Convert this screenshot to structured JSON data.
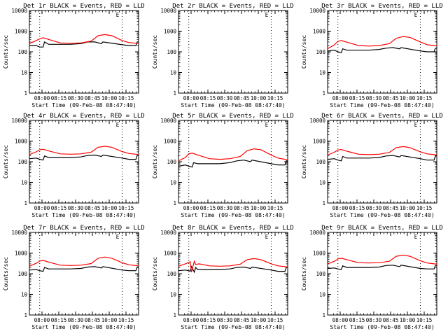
{
  "chart_data": [
    {
      "type": "line",
      "title": "Det 1r BLACK = Events, RED = LLD",
      "xlabel": "Start Time (09-Feb-08 08:47:40)",
      "ylabel": "Counts/sec",
      "yscale": "log",
      "ylim": [
        1,
        10000
      ],
      "xlim": [
        "07:45",
        "10:24"
      ],
      "xticks": [
        "08:00",
        "08:15",
        "08:30",
        "08:45",
        "10:00",
        "10:15"
      ],
      "yticks": [
        "1",
        "10",
        "100",
        "1000",
        "10000"
      ],
      "vlines": [
        "08:00",
        "10:00"
      ],
      "marker": "E",
      "empty": false,
      "series": [
        {
          "name": "Events",
          "color": "#000000",
          "x": [
            "07:45",
            "07:55",
            "08:00",
            "08:05",
            "08:07",
            "08:13",
            "08:30",
            "08:45",
            "09:00",
            "09:10",
            "09:20",
            "09:30",
            "09:32",
            "10:00",
            "10:10",
            "10:20",
            "10:22",
            "10:24"
          ],
          "values": [
            200,
            200,
            170,
            170,
            300,
            230,
            230,
            230,
            250,
            300,
            300,
            250,
            300,
            220,
            200,
            200,
            300,
            300
          ]
        },
        {
          "name": "LLD",
          "color": "#ff0000",
          "x": [
            "07:45",
            "07:55",
            "08:00",
            "08:05",
            "08:15",
            "08:30",
            "08:45",
            "09:00",
            "09:15",
            "09:25",
            "09:35",
            "09:45",
            "10:00",
            "10:10",
            "10:20",
            "10:24"
          ],
          "values": [
            250,
            350,
            420,
            480,
            380,
            270,
            260,
            270,
            330,
            600,
            680,
            600,
            350,
            280,
            260,
            250
          ]
        }
      ]
    },
    {
      "type": "line",
      "title": "Det 2r BLACK = Events, RED = LLD",
      "xlabel": "Start Time (09-Feb-08 08:47:40)",
      "ylabel": "Counts/sec",
      "yscale": "log",
      "ylim": [
        1,
        10000
      ],
      "xlim": [
        "07:45",
        "10:24"
      ],
      "xticks": [
        "08:00",
        "08:15",
        "08:30",
        "08:45",
        "10:00",
        "10:15"
      ],
      "yticks": [
        "1",
        "10",
        "100",
        "1000",
        "10000"
      ],
      "vlines": [
        "08:00",
        "10:00"
      ],
      "marker": "E",
      "empty": true,
      "series": []
    },
    {
      "type": "line",
      "title": "Det 3r BLACK = Events, RED = LLD",
      "xlabel": "Start Time (09-Feb-08 08:47:40)",
      "ylabel": "Counts/sec",
      "yscale": "log",
      "ylim": [
        1,
        10000
      ],
      "xlim": [
        "07:45",
        "10:24"
      ],
      "xticks": [
        "08:00",
        "08:15",
        "08:30",
        "08:45",
        "10:00",
        "10:15"
      ],
      "yticks": [
        "1",
        "10",
        "100",
        "1000",
        "10000"
      ],
      "vlines": [
        "08:00",
        "10:00"
      ],
      "marker": "E",
      "empty": false,
      "series": [
        {
          "name": "Events",
          "color": "#000000",
          "x": [
            "07:45",
            "07:55",
            "08:00",
            "08:05",
            "08:07",
            "08:13",
            "08:30",
            "08:45",
            "09:00",
            "09:10",
            "09:20",
            "09:30",
            "09:32",
            "10:00",
            "10:10",
            "10:20",
            "10:22",
            "10:24"
          ],
          "values": [
            110,
            120,
            100,
            90,
            140,
            120,
            120,
            120,
            130,
            150,
            160,
            140,
            160,
            110,
            100,
            100,
            150,
            150
          ]
        },
        {
          "name": "LLD",
          "color": "#ff0000",
          "x": [
            "07:45",
            "07:55",
            "08:00",
            "08:05",
            "08:15",
            "08:30",
            "08:45",
            "09:00",
            "09:15",
            "09:25",
            "09:35",
            "09:45",
            "10:00",
            "10:10",
            "10:20",
            "10:24"
          ],
          "values": [
            140,
            220,
            320,
            350,
            280,
            200,
            190,
            200,
            250,
            450,
            550,
            500,
            300,
            220,
            200,
            200
          ]
        }
      ]
    },
    {
      "type": "line",
      "title": "Det 4r BLACK = Events, RED = LLD",
      "xlabel": "Start Time (09-Feb-08 08:47:40)",
      "ylabel": "Counts/sec",
      "yscale": "log",
      "ylim": [
        1,
        10000
      ],
      "xlim": [
        "07:45",
        "10:24"
      ],
      "xticks": [
        "08:00",
        "08:15",
        "08:30",
        "08:45",
        "10:00",
        "10:15"
      ],
      "yticks": [
        "1",
        "10",
        "100",
        "1000",
        "10000"
      ],
      "vlines": [
        "08:00",
        "10:00"
      ],
      "marker": "E",
      "empty": false,
      "series": [
        {
          "name": "Events",
          "color": "#000000",
          "x": [
            "07:45",
            "07:55",
            "08:00",
            "08:05",
            "08:07",
            "08:13",
            "08:30",
            "08:45",
            "09:00",
            "09:10",
            "09:20",
            "09:30",
            "09:32",
            "10:00",
            "10:10",
            "10:20",
            "10:22",
            "10:24"
          ],
          "values": [
            140,
            150,
            130,
            120,
            190,
            160,
            160,
            160,
            170,
            200,
            210,
            180,
            210,
            150,
            130,
            130,
            200,
            200
          ]
        },
        {
          "name": "LLD",
          "color": "#ff0000",
          "x": [
            "07:45",
            "07:55",
            "08:00",
            "08:05",
            "08:15",
            "08:30",
            "08:45",
            "09:00",
            "09:15",
            "09:25",
            "09:35",
            "09:45",
            "10:00",
            "10:10",
            "10:20",
            "10:24"
          ],
          "values": [
            220,
            300,
            380,
            400,
            320,
            240,
            230,
            240,
            290,
            500,
            560,
            500,
            310,
            250,
            230,
            220
          ]
        }
      ]
    },
    {
      "type": "line",
      "title": "Det 5r BLACK = Events, RED = LLD",
      "xlabel": "Start Time (09-Feb-08 08:47:40)",
      "ylabel": "Counts/sec",
      "yscale": "log",
      "ylim": [
        1,
        10000
      ],
      "xlim": [
        "07:45",
        "10:24"
      ],
      "xticks": [
        "08:00",
        "08:15",
        "08:30",
        "08:45",
        "10:00",
        "10:15"
      ],
      "yticks": [
        "1",
        "10",
        "100",
        "1000",
        "10000"
      ],
      "vlines": [
        "08:00",
        "10:00"
      ],
      "marker": "E",
      "empty": false,
      "series": [
        {
          "name": "Events",
          "color": "#000000",
          "x": [
            "07:45",
            "07:55",
            "08:00",
            "08:05",
            "08:07",
            "08:13",
            "08:30",
            "08:45",
            "09:00",
            "09:10",
            "09:20",
            "09:30",
            "09:32",
            "10:00",
            "10:10",
            "10:20",
            "10:22",
            "10:24"
          ],
          "values": [
            60,
            70,
            60,
            55,
            90,
            80,
            80,
            80,
            90,
            110,
            120,
            100,
            120,
            80,
            70,
            70,
            110,
            110
          ]
        },
        {
          "name": "LLD",
          "color": "#ff0000",
          "x": [
            "07:45",
            "07:55",
            "08:00",
            "08:05",
            "08:15",
            "08:30",
            "08:45",
            "09:00",
            "09:15",
            "09:25",
            "09:35",
            "09:45",
            "10:00",
            "10:10",
            "10:20",
            "10:24"
          ],
          "values": [
            110,
            160,
            240,
            260,
            200,
            140,
            130,
            140,
            180,
            340,
            420,
            380,
            210,
            150,
            130,
            120
          ]
        }
      ]
    },
    {
      "type": "line",
      "title": "Det 6r BLACK = Events, RED = LLD",
      "xlabel": "Start Time (09-Feb-08 08:47:40)",
      "ylabel": "Counts/sec",
      "yscale": "log",
      "ylim": [
        1,
        10000
      ],
      "xlim": [
        "07:45",
        "10:24"
      ],
      "xticks": [
        "08:00",
        "08:15",
        "08:30",
        "08:45",
        "10:00",
        "10:15"
      ],
      "yticks": [
        "1",
        "10",
        "100",
        "1000",
        "10000"
      ],
      "vlines": [
        "08:00",
        "10:00"
      ],
      "marker": "E",
      "empty": false,
      "series": [
        {
          "name": "Events",
          "color": "#000000",
          "x": [
            "07:45",
            "07:55",
            "08:00",
            "08:05",
            "08:07",
            "08:13",
            "08:30",
            "08:45",
            "09:00",
            "09:10",
            "09:20",
            "09:30",
            "09:32",
            "10:00",
            "10:10",
            "10:20",
            "10:22",
            "10:24"
          ],
          "values": [
            130,
            140,
            120,
            110,
            180,
            150,
            150,
            150,
            160,
            190,
            200,
            170,
            200,
            140,
            120,
            120,
            190,
            190
          ]
        },
        {
          "name": "LLD",
          "color": "#ff0000",
          "x": [
            "07:45",
            "07:55",
            "08:00",
            "08:05",
            "08:15",
            "08:30",
            "08:45",
            "09:00",
            "09:15",
            "09:25",
            "09:35",
            "09:45",
            "10:00",
            "10:10",
            "10:20",
            "10:24"
          ],
          "values": [
            210,
            290,
            370,
            390,
            310,
            230,
            220,
            230,
            280,
            480,
            540,
            480,
            300,
            240,
            220,
            210
          ]
        }
      ]
    },
    {
      "type": "line",
      "title": "Det 7r BLACK = Events, RED = LLD",
      "xlabel": "Start Time (09-Feb-08 08:47:40)",
      "ylabel": "Counts/sec",
      "yscale": "log",
      "ylim": [
        1,
        10000
      ],
      "xlim": [
        "07:45",
        "10:24"
      ],
      "xticks": [
        "08:00",
        "08:15",
        "08:30",
        "08:45",
        "10:00",
        "10:15"
      ],
      "yticks": [
        "1",
        "10",
        "100",
        "1000",
        "10000"
      ],
      "vlines": [
        "08:00",
        "10:00"
      ],
      "marker": "E",
      "empty": false,
      "series": [
        {
          "name": "Events",
          "color": "#000000",
          "x": [
            "07:45",
            "07:55",
            "08:00",
            "08:05",
            "08:07",
            "08:13",
            "08:30",
            "08:45",
            "09:00",
            "09:10",
            "09:20",
            "09:30",
            "09:32",
            "10:00",
            "10:10",
            "10:20",
            "10:22",
            "10:24"
          ],
          "values": [
            150,
            160,
            140,
            130,
            200,
            170,
            170,
            170,
            180,
            210,
            220,
            190,
            220,
            150,
            140,
            140,
            210,
            210
          ]
        },
        {
          "name": "LLD",
          "color": "#ff0000",
          "x": [
            "07:45",
            "07:55",
            "08:00",
            "08:05",
            "08:15",
            "08:30",
            "08:45",
            "09:00",
            "09:15",
            "09:25",
            "09:35",
            "09:45",
            "10:00",
            "10:10",
            "10:20",
            "10:24"
          ],
          "values": [
            230,
            320,
            410,
            440,
            350,
            260,
            250,
            260,
            310,
            560,
            640,
            560,
            340,
            270,
            250,
            240
          ]
        }
      ]
    },
    {
      "type": "line",
      "title": "Det 8r BLACK = Events, RED = LLD",
      "xlabel": "Start Time (09-Feb-08 08:47:40)",
      "ylabel": "Counts/sec",
      "yscale": "log",
      "ylim": [
        1,
        10000
      ],
      "xlim": [
        "07:45",
        "10:24"
      ],
      "xticks": [
        "08:00",
        "08:15",
        "08:30",
        "08:45",
        "10:00",
        "10:15"
      ],
      "yticks": [
        "1",
        "10",
        "100",
        "1000",
        "10000"
      ],
      "vlines": [
        "08:00",
        "10:00"
      ],
      "marker": "E",
      "empty": false,
      "series": [
        {
          "name": "Events",
          "color": "#000000",
          "x": [
            "07:45",
            "07:55",
            "08:00",
            "08:02",
            "08:04",
            "08:08",
            "08:10",
            "08:13",
            "08:30",
            "08:45",
            "09:00",
            "09:10",
            "09:20",
            "09:30",
            "09:32",
            "10:00",
            "10:10",
            "10:20",
            "10:22",
            "10:24"
          ],
          "values": [
            140,
            150,
            140,
            130,
            220,
            120,
            200,
            160,
            160,
            160,
            170,
            200,
            210,
            180,
            210,
            150,
            130,
            130,
            200,
            200
          ]
        },
        {
          "name": "LLD",
          "color": "#ff0000",
          "x": [
            "07:45",
            "07:55",
            "08:00",
            "08:02",
            "08:04",
            "08:08",
            "08:10",
            "08:15",
            "08:30",
            "08:45",
            "09:00",
            "09:15",
            "09:25",
            "09:35",
            "09:45",
            "10:00",
            "10:10",
            "10:20",
            "10:24"
          ],
          "values": [
            230,
            300,
            350,
            380,
            120,
            400,
            280,
            300,
            240,
            230,
            240,
            290,
            480,
            540,
            480,
            300,
            240,
            220,
            210
          ]
        }
      ]
    },
    {
      "type": "line",
      "title": "Det 9r BLACK = Events, RED = LLD",
      "xlabel": "Start Time (09-Feb-08 08:47:40)",
      "ylabel": "Counts/sec",
      "yscale": "log",
      "ylim": [
        1,
        10000
      ],
      "xlim": [
        "07:45",
        "10:24"
      ],
      "xticks": [
        "08:00",
        "08:15",
        "08:30",
        "08:45",
        "10:00",
        "10:15"
      ],
      "yticks": [
        "1",
        "10",
        "100",
        "1000",
        "10000"
      ],
      "vlines": [
        "08:00",
        "10:00"
      ],
      "marker": "E",
      "empty": false,
      "series": [
        {
          "name": "Events",
          "color": "#000000",
          "x": [
            "07:45",
            "07:55",
            "08:00",
            "08:05",
            "08:07",
            "08:13",
            "08:30",
            "08:45",
            "09:00",
            "09:10",
            "09:20",
            "09:30",
            "09:32",
            "10:00",
            "10:10",
            "10:20",
            "10:22",
            "10:24"
          ],
          "values": [
            180,
            190,
            170,
            160,
            240,
            200,
            200,
            200,
            210,
            250,
            260,
            220,
            260,
            180,
            170,
            170,
            250,
            250
          ]
        },
        {
          "name": "LLD",
          "color": "#ff0000",
          "x": [
            "07:45",
            "07:55",
            "08:00",
            "08:05",
            "08:15",
            "08:30",
            "08:45",
            "09:00",
            "09:15",
            "09:25",
            "09:35",
            "09:45",
            "10:00",
            "10:10",
            "10:20",
            "10:24"
          ],
          "values": [
            300,
            400,
            520,
            560,
            460,
            340,
            330,
            340,
            400,
            700,
            800,
            700,
            420,
            330,
            300,
            290
          ]
        }
      ]
    }
  ]
}
